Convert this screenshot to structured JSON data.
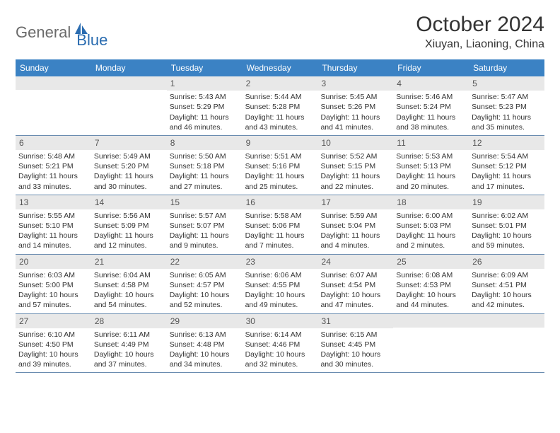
{
  "logo": {
    "part1": "General",
    "part2": "Blue"
  },
  "title": "October 2024",
  "location": "Xiuyan, Liaoning, China",
  "colors": {
    "header_bg": "#3b82c4",
    "header_text": "#ffffff",
    "date_band_bg": "#e8e8e8",
    "row_border": "#6a8cb0",
    "body_text": "#333333",
    "logo_gray": "#6a6a6a",
    "logo_blue": "#2a6cb0"
  },
  "day_names": [
    "Sunday",
    "Monday",
    "Tuesday",
    "Wednesday",
    "Thursday",
    "Friday",
    "Saturday"
  ],
  "weeks": [
    [
      {
        "date": "",
        "sunrise": "",
        "sunset": "",
        "daylight": ""
      },
      {
        "date": "",
        "sunrise": "",
        "sunset": "",
        "daylight": ""
      },
      {
        "date": "1",
        "sunrise": "Sunrise: 5:43 AM",
        "sunset": "Sunset: 5:29 PM",
        "daylight": "Daylight: 11 hours and 46 minutes."
      },
      {
        "date": "2",
        "sunrise": "Sunrise: 5:44 AM",
        "sunset": "Sunset: 5:28 PM",
        "daylight": "Daylight: 11 hours and 43 minutes."
      },
      {
        "date": "3",
        "sunrise": "Sunrise: 5:45 AM",
        "sunset": "Sunset: 5:26 PM",
        "daylight": "Daylight: 11 hours and 41 minutes."
      },
      {
        "date": "4",
        "sunrise": "Sunrise: 5:46 AM",
        "sunset": "Sunset: 5:24 PM",
        "daylight": "Daylight: 11 hours and 38 minutes."
      },
      {
        "date": "5",
        "sunrise": "Sunrise: 5:47 AM",
        "sunset": "Sunset: 5:23 PM",
        "daylight": "Daylight: 11 hours and 35 minutes."
      }
    ],
    [
      {
        "date": "6",
        "sunrise": "Sunrise: 5:48 AM",
        "sunset": "Sunset: 5:21 PM",
        "daylight": "Daylight: 11 hours and 33 minutes."
      },
      {
        "date": "7",
        "sunrise": "Sunrise: 5:49 AM",
        "sunset": "Sunset: 5:20 PM",
        "daylight": "Daylight: 11 hours and 30 minutes."
      },
      {
        "date": "8",
        "sunrise": "Sunrise: 5:50 AM",
        "sunset": "Sunset: 5:18 PM",
        "daylight": "Daylight: 11 hours and 27 minutes."
      },
      {
        "date": "9",
        "sunrise": "Sunrise: 5:51 AM",
        "sunset": "Sunset: 5:16 PM",
        "daylight": "Daylight: 11 hours and 25 minutes."
      },
      {
        "date": "10",
        "sunrise": "Sunrise: 5:52 AM",
        "sunset": "Sunset: 5:15 PM",
        "daylight": "Daylight: 11 hours and 22 minutes."
      },
      {
        "date": "11",
        "sunrise": "Sunrise: 5:53 AM",
        "sunset": "Sunset: 5:13 PM",
        "daylight": "Daylight: 11 hours and 20 minutes."
      },
      {
        "date": "12",
        "sunrise": "Sunrise: 5:54 AM",
        "sunset": "Sunset: 5:12 PM",
        "daylight": "Daylight: 11 hours and 17 minutes."
      }
    ],
    [
      {
        "date": "13",
        "sunrise": "Sunrise: 5:55 AM",
        "sunset": "Sunset: 5:10 PM",
        "daylight": "Daylight: 11 hours and 14 minutes."
      },
      {
        "date": "14",
        "sunrise": "Sunrise: 5:56 AM",
        "sunset": "Sunset: 5:09 PM",
        "daylight": "Daylight: 11 hours and 12 minutes."
      },
      {
        "date": "15",
        "sunrise": "Sunrise: 5:57 AM",
        "sunset": "Sunset: 5:07 PM",
        "daylight": "Daylight: 11 hours and 9 minutes."
      },
      {
        "date": "16",
        "sunrise": "Sunrise: 5:58 AM",
        "sunset": "Sunset: 5:06 PM",
        "daylight": "Daylight: 11 hours and 7 minutes."
      },
      {
        "date": "17",
        "sunrise": "Sunrise: 5:59 AM",
        "sunset": "Sunset: 5:04 PM",
        "daylight": "Daylight: 11 hours and 4 minutes."
      },
      {
        "date": "18",
        "sunrise": "Sunrise: 6:00 AM",
        "sunset": "Sunset: 5:03 PM",
        "daylight": "Daylight: 11 hours and 2 minutes."
      },
      {
        "date": "19",
        "sunrise": "Sunrise: 6:02 AM",
        "sunset": "Sunset: 5:01 PM",
        "daylight": "Daylight: 10 hours and 59 minutes."
      }
    ],
    [
      {
        "date": "20",
        "sunrise": "Sunrise: 6:03 AM",
        "sunset": "Sunset: 5:00 PM",
        "daylight": "Daylight: 10 hours and 57 minutes."
      },
      {
        "date": "21",
        "sunrise": "Sunrise: 6:04 AM",
        "sunset": "Sunset: 4:58 PM",
        "daylight": "Daylight: 10 hours and 54 minutes."
      },
      {
        "date": "22",
        "sunrise": "Sunrise: 6:05 AM",
        "sunset": "Sunset: 4:57 PM",
        "daylight": "Daylight: 10 hours and 52 minutes."
      },
      {
        "date": "23",
        "sunrise": "Sunrise: 6:06 AM",
        "sunset": "Sunset: 4:55 PM",
        "daylight": "Daylight: 10 hours and 49 minutes."
      },
      {
        "date": "24",
        "sunrise": "Sunrise: 6:07 AM",
        "sunset": "Sunset: 4:54 PM",
        "daylight": "Daylight: 10 hours and 47 minutes."
      },
      {
        "date": "25",
        "sunrise": "Sunrise: 6:08 AM",
        "sunset": "Sunset: 4:53 PM",
        "daylight": "Daylight: 10 hours and 44 minutes."
      },
      {
        "date": "26",
        "sunrise": "Sunrise: 6:09 AM",
        "sunset": "Sunset: 4:51 PM",
        "daylight": "Daylight: 10 hours and 42 minutes."
      }
    ],
    [
      {
        "date": "27",
        "sunrise": "Sunrise: 6:10 AM",
        "sunset": "Sunset: 4:50 PM",
        "daylight": "Daylight: 10 hours and 39 minutes."
      },
      {
        "date": "28",
        "sunrise": "Sunrise: 6:11 AM",
        "sunset": "Sunset: 4:49 PM",
        "daylight": "Daylight: 10 hours and 37 minutes."
      },
      {
        "date": "29",
        "sunrise": "Sunrise: 6:13 AM",
        "sunset": "Sunset: 4:48 PM",
        "daylight": "Daylight: 10 hours and 34 minutes."
      },
      {
        "date": "30",
        "sunrise": "Sunrise: 6:14 AM",
        "sunset": "Sunset: 4:46 PM",
        "daylight": "Daylight: 10 hours and 32 minutes."
      },
      {
        "date": "31",
        "sunrise": "Sunrise: 6:15 AM",
        "sunset": "Sunset: 4:45 PM",
        "daylight": "Daylight: 10 hours and 30 minutes."
      },
      {
        "date": "",
        "sunrise": "",
        "sunset": "",
        "daylight": ""
      },
      {
        "date": "",
        "sunrise": "",
        "sunset": "",
        "daylight": ""
      }
    ]
  ]
}
